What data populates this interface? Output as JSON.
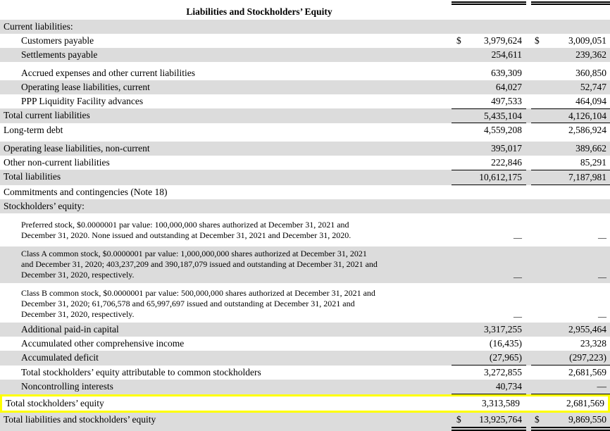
{
  "header": {
    "title": "Liabilities and Stockholders’ Equity"
  },
  "colors": {
    "row_stripe": "#DCDCDC",
    "highlight_border": "#FFFF00",
    "text": "#000000",
    "rule": "#000000"
  },
  "table": {
    "rows": [
      {
        "label": "Current liabilities:",
        "indent": 0,
        "bg": "gray"
      },
      {
        "label": "Customers payable",
        "indent": 1,
        "bg": "white",
        "dollar1": "$",
        "value1": "3,979,624",
        "dollar2": "$",
        "value2": "3,009,051"
      },
      {
        "label": "Settlements payable",
        "indent": 1,
        "bg": "gray",
        "value1": "254,611",
        "value2": "239,362",
        "gap_after": true
      },
      {
        "label": "Accrued expenses and other current liabilities",
        "indent": 1,
        "bg": "white",
        "value1": "639,309",
        "value2": "360,850"
      },
      {
        "label": "Operating lease liabilities, current",
        "indent": 1,
        "bg": "gray",
        "value1": "64,027",
        "value2": "52,747"
      },
      {
        "label": "PPP Liquidity Facility advances",
        "indent": 1,
        "bg": "white",
        "value1": "497,533",
        "value2": "464,094"
      },
      {
        "label": "Total current liabilities",
        "indent": 0,
        "bg": "gray",
        "value1": "5,435,104",
        "value2": "4,126,104",
        "rule_top": true,
        "rule_bottom": true
      },
      {
        "label": "Long-term debt",
        "indent": 0,
        "bg": "white",
        "value1": "4,559,208",
        "value2": "2,586,924",
        "gap_after": true
      },
      {
        "label": "Operating lease liabilities, non-current",
        "indent": 0,
        "bg": "gray",
        "value1": "395,017",
        "value2": "389,662"
      },
      {
        "label": "Other non-current liabilities",
        "indent": 0,
        "bg": "white",
        "value1": "222,846",
        "value2": "85,291"
      },
      {
        "label": "Total liabilities",
        "indent": 0,
        "bg": "gray",
        "value1": "10,612,175",
        "value2": "7,187,981",
        "rule_top": true,
        "rule_bottom": true
      },
      {
        "label": "Commitments and contingencies (Note 18)",
        "indent": 0,
        "bg": "white"
      },
      {
        "label": "Stockholders’ equity:",
        "indent": 0,
        "bg": "gray",
        "gap_after": true
      },
      {
        "label": [
          "Preferred stock, $0.0000001 par value: 100,000,000 shares authorized at December 31, 2021 and",
          "December 31, 2020. None issued and outstanding at December 31, 2021 and December 31, 2020."
        ],
        "indent": 1,
        "bg": "white",
        "small": true,
        "value1": "—",
        "value2": "—",
        "gap_after_sm": true
      },
      {
        "label": [
          "Class A common stock, $0.0000001 par value: 1,000,000,000 shares authorized at December 31, 2021",
          "and December 31, 2020; 403,237,209 and 390,187,079 issued and outstanding at December 31, 2021 and",
          "December 31, 2020, respectively."
        ],
        "indent": 1,
        "bg": "gray",
        "small": true,
        "value1": "—",
        "value2": "—",
        "gap_after_sm": true
      },
      {
        "label": [
          "Class B common stock, $0.0000001 par value: 500,000,000 shares authorized at December 31, 2021 and",
          "December 31, 2020; 61,706,578 and 65,997,697 issued and outstanding at December 31, 2021 and",
          "December 31, 2020, respectively."
        ],
        "indent": 1,
        "bg": "white",
        "small": true,
        "value1": "—",
        "value2": "—"
      },
      {
        "label": "Additional paid-in capital",
        "indent": 1,
        "bg": "gray",
        "value1": "3,317,255",
        "value2": "2,955,464"
      },
      {
        "label": "Accumulated other comprehensive income",
        "indent": 1,
        "bg": "white",
        "value1": "(16,435)",
        "value2": "23,328"
      },
      {
        "label": "Accumulated deficit",
        "indent": 1,
        "bg": "gray",
        "value1": "(27,965)",
        "value2": "(297,223)",
        "rule_bottom": true
      },
      {
        "label": "Total stockholders’ equity attributable to common stockholders",
        "indent": 1,
        "bg": "white",
        "value1": "3,272,855",
        "value2": "2,681,569"
      },
      {
        "label": "Noncontrolling interests",
        "indent": 1,
        "bg": "gray",
        "value1": "40,734",
        "value2": "—",
        "rule_bottom": true
      },
      {
        "label": "Total stockholders’ equity",
        "indent": 0,
        "bg": "white",
        "value1": "3,313,589",
        "value2": "2,681,569",
        "highlight": true
      },
      {
        "label": "Total liabilities and stockholders’ equity",
        "indent": 0,
        "bg": "gray",
        "dollar1": "$",
        "value1": "13,925,764",
        "dollar2": "$",
        "value2": "9,869,550",
        "double_bottom": true
      }
    ]
  }
}
